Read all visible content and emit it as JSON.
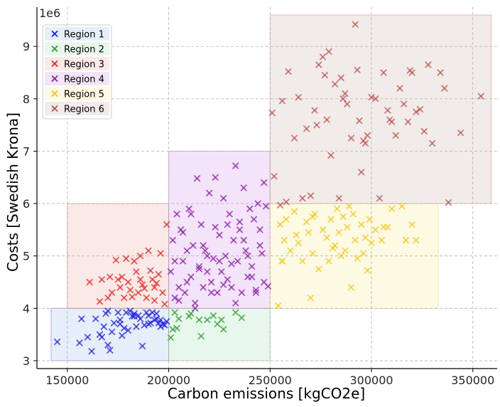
{
  "chart_data": {
    "type": "scatter",
    "xlabel": "Carbon emissions [kgCO2e]",
    "ylabel": "Costs [Swedish Krona]",
    "y_offset_label": "1e6",
    "xlim": [
      135000,
      362000
    ],
    "ylim": [
      2.85,
      9.75
    ],
    "x_ticks": [
      150000,
      200000,
      250000,
      300000,
      350000
    ],
    "x_tick_labels": [
      "150000",
      "200000",
      "250000",
      "300000",
      "350000"
    ],
    "y_ticks": [
      3,
      4,
      5,
      6,
      7,
      8,
      9
    ],
    "y_tick_labels": [
      "3",
      "4",
      "5",
      "6",
      "7",
      "8",
      "9"
    ],
    "grid": true,
    "legend_position": "top-left",
    "marker": "x",
    "series": [
      {
        "name": "Region 1",
        "color": "#1f1fe6",
        "region": {
          "x": [
            142000,
            200000
          ],
          "y": [
            3.0,
            4.0
          ],
          "fill": "#e6eefa"
        },
        "x": [
          145000,
          156000,
          157000,
          160000,
          162000,
          164000,
          166000,
          167000,
          168000,
          169000,
          170000,
          171000,
          172000,
          173000,
          175000,
          176000,
          177000,
          178000,
          179000,
          180000,
          181000,
          182000,
          183000,
          184000,
          185000,
          186000,
          187000,
          188000,
          189000,
          190000,
          191000,
          192000,
          193000,
          194000,
          195000,
          196000,
          197000,
          198000,
          199000,
          170000,
          176000,
          183000,
          190000,
          194000,
          196000
        ],
        "y": [
          3.36,
          3.34,
          3.8,
          3.45,
          3.18,
          3.8,
          3.5,
          3.45,
          3.65,
          3.9,
          3.3,
          3.2,
          3.55,
          3.72,
          3.92,
          3.78,
          3.48,
          3.62,
          3.92,
          3.58,
          3.95,
          3.85,
          3.9,
          3.65,
          3.86,
          3.8,
          3.28,
          3.68,
          3.92,
          3.86,
          3.72,
          3.92,
          3.78,
          3.9,
          3.72,
          3.78,
          3.7,
          3.68,
          3.75,
          3.95,
          3.7,
          3.85,
          3.7,
          3.8,
          3.65
        ]
      },
      {
        "name": "Region 2",
        "color": "#2ca02c",
        "region": {
          "x": [
            200000,
            250000
          ],
          "y": [
            3.0,
            4.0
          ],
          "fill": "#e8f7ec"
        },
        "x": [
          201000,
          202000,
          203000,
          204000,
          205000,
          210000,
          211000,
          215000,
          216000,
          219000,
          222000,
          224000,
          226000,
          227000,
          233000,
          236000
        ],
        "y": [
          3.44,
          3.6,
          3.92,
          3.62,
          3.8,
          3.85,
          3.9,
          3.78,
          3.47,
          3.78,
          3.86,
          3.7,
          3.78,
          3.6,
          3.92,
          3.82
        ]
      },
      {
        "name": "Region 3",
        "color": "#e8261e",
        "region": {
          "x": [
            150000,
            200000
          ],
          "y": [
            4.0,
            6.0
          ],
          "fill": "#fbe9e8"
        },
        "x": [
          161000,
          166000,
          167000,
          170000,
          171000,
          172000,
          174000,
          175000,
          176000,
          178000,
          179000,
          180000,
          181000,
          182000,
          183000,
          184000,
          185000,
          186000,
          187000,
          188000,
          189000,
          190000,
          191000,
          192000,
          193000,
          194000,
          195000,
          196000,
          197000,
          198000,
          199000,
          177000,
          186000,
          193000
        ],
        "y": [
          4.5,
          4.13,
          4.55,
          4.2,
          4.6,
          4.3,
          4.92,
          4.55,
          4.4,
          4.2,
          4.95,
          4.5,
          4.35,
          4.22,
          4.9,
          4.7,
          4.3,
          4.55,
          4.45,
          4.38,
          4.2,
          5.1,
          4.72,
          4.55,
          4.15,
          4.48,
          4.65,
          5.05,
          4.3,
          4.08,
          5.6,
          4.6,
          5.0,
          4.4
        ],
        "note": ""
      },
      {
        "name": "Region 4",
        "color": "#8b1fa6",
        "region": {
          "x": [
            200000,
            250000
          ],
          "y": [
            4.0,
            7.0
          ],
          "fill": "#f4e4fa"
        },
        "x": [
          201000,
          202000,
          203000,
          204000,
          205000,
          206000,
          207000,
          208000,
          209000,
          210000,
          211000,
          212000,
          213000,
          214000,
          215000,
          216000,
          217000,
          218000,
          219000,
          220000,
          221000,
          222000,
          223000,
          224000,
          225000,
          226000,
          227000,
          228000,
          229000,
          230000,
          231000,
          232000,
          233000,
          234000,
          235000,
          236000,
          237000,
          238000,
          239000,
          240000,
          241000,
          242000,
          243000,
          244000,
          245000,
          246000,
          247000,
          248000,
          249000,
          205000,
          209000,
          213000,
          217000,
          221000,
          225000,
          229000,
          233000,
          237000,
          241000,
          245000,
          203000,
          211000,
          219000,
          227000,
          235000,
          243000,
          207000,
          215000,
          223000,
          231000,
          239000,
          247000
        ],
        "y": [
          4.7,
          5.3,
          4.2,
          5.8,
          4.4,
          5.5,
          4.9,
          4.3,
          5.1,
          5.9,
          4.6,
          5.2,
          4.1,
          6.48,
          4.8,
          5.6,
          4.4,
          5.1,
          4.7,
          6.2,
          4.5,
          4.95,
          6.5,
          4.3,
          5.4,
          4.7,
          6.1,
          5.0,
          4.55,
          5.8,
          4.4,
          5.3,
          6.72,
          4.9,
          5.5,
          4.3,
          6.3,
          5.1,
          4.6,
          5.9,
          4.8,
          5.7,
          4.35,
          6.0,
          5.5,
          5.05,
          4.5,
          5.95,
          4.42,
          4.15,
          4.5,
          4.0,
          5.2,
          4.3,
          4.9,
          5.6,
          4.1,
          5.3,
          4.6,
          5.2,
          4.9,
          5.8,
          5.0,
          4.45,
          5.65,
          4.3,
          5.45,
          4.75,
          5.55,
          4.85,
          5.0,
          6.4
        ]
      },
      {
        "name": "Region 5",
        "color": "#f5c518",
        "region": {
          "x": [
            250000,
            333000
          ],
          "y": [
            4.0,
            6.0
          ],
          "fill": "#fdfae4"
        },
        "x": [
          254000,
          255000,
          256000,
          257000,
          258000,
          260000,
          262000,
          264000,
          266000,
          268000,
          269000,
          270000,
          271000,
          272000,
          274000,
          276000,
          278000,
          279000,
          280000,
          282000,
          283000,
          284000,
          285000,
          286000,
          287000,
          288000,
          290000,
          291000,
          292000,
          293000,
          295000,
          296000,
          298000,
          299000,
          300000,
          302000,
          305000,
          308000,
          310000,
          315000,
          317000,
          320000,
          322000,
          256000,
          263000,
          271000,
          281000,
          289000,
          297000,
          306000
        ],
        "y": [
          4.05,
          5.6,
          4.9,
          5.3,
          5.7,
          5.1,
          5.85,
          5.25,
          4.9,
          5.65,
          5.45,
          4.2,
          5.05,
          5.8,
          4.75,
          5.5,
          5.35,
          4.9,
          5.7,
          5.2,
          5.9,
          5.45,
          5.0,
          5.75,
          5.1,
          5.55,
          4.4,
          5.8,
          5.3,
          4.95,
          5.6,
          5.05,
          4.72,
          5.7,
          5.25,
          5.5,
          5.3,
          5.55,
          5.9,
          5.95,
          5.3,
          5.6,
          5.3,
          4.9,
          5.4,
          5.75,
          5.15,
          5.95,
          5.35,
          5.55
        ]
      },
      {
        "name": "Region 6",
        "color": "#c0504d",
        "region": {
          "x": [
            250000,
            359000
          ],
          "y": [
            6.0,
            9.6
          ],
          "fill": "#f1ece9"
        },
        "x": [
          251000,
          252000,
          255000,
          256000,
          258000,
          259000,
          262000,
          264000,
          266000,
          268000,
          270000,
          272000,
          273000,
          274000,
          276000,
          278000,
          279000,
          280000,
          282000,
          284000,
          285000,
          286000,
          288000,
          290000,
          292000,
          293000,
          294000,
          295000,
          296000,
          298000,
          300000,
          302000,
          304000,
          306000,
          308000,
          310000,
          312000,
          314000,
          316000,
          318000,
          320000,
          322000,
          324000,
          326000,
          328000,
          330000,
          334000,
          336000,
          338000,
          344000,
          354000,
          277000,
          287000,
          297000,
          309000,
          319000
        ],
        "y": [
          7.73,
          6.52,
          5.97,
          7.96,
          6.03,
          8.52,
          7.25,
          8.03,
          6.1,
          7.43,
          6.15,
          7.78,
          7.5,
          8.65,
          8.8,
          7.6,
          8.9,
          6.92,
          8.28,
          6.1,
          8.4,
          8.0,
          7.9,
          7.25,
          9.42,
          8.55,
          7.58,
          6.6,
          7.2,
          7.3,
          8.03,
          8.0,
          6.1,
          8.5,
          7.78,
          7.56,
          7.3,
          8.2,
          7.9,
          7.56,
          8.5,
          7.75,
          7.8,
          7.38,
          8.65,
          7.15,
          8.5,
          8.2,
          6.02,
          7.35,
          8.05,
          8.45,
          8.1,
          7.15,
          7.6,
          8.54
        ]
      }
    ]
  }
}
